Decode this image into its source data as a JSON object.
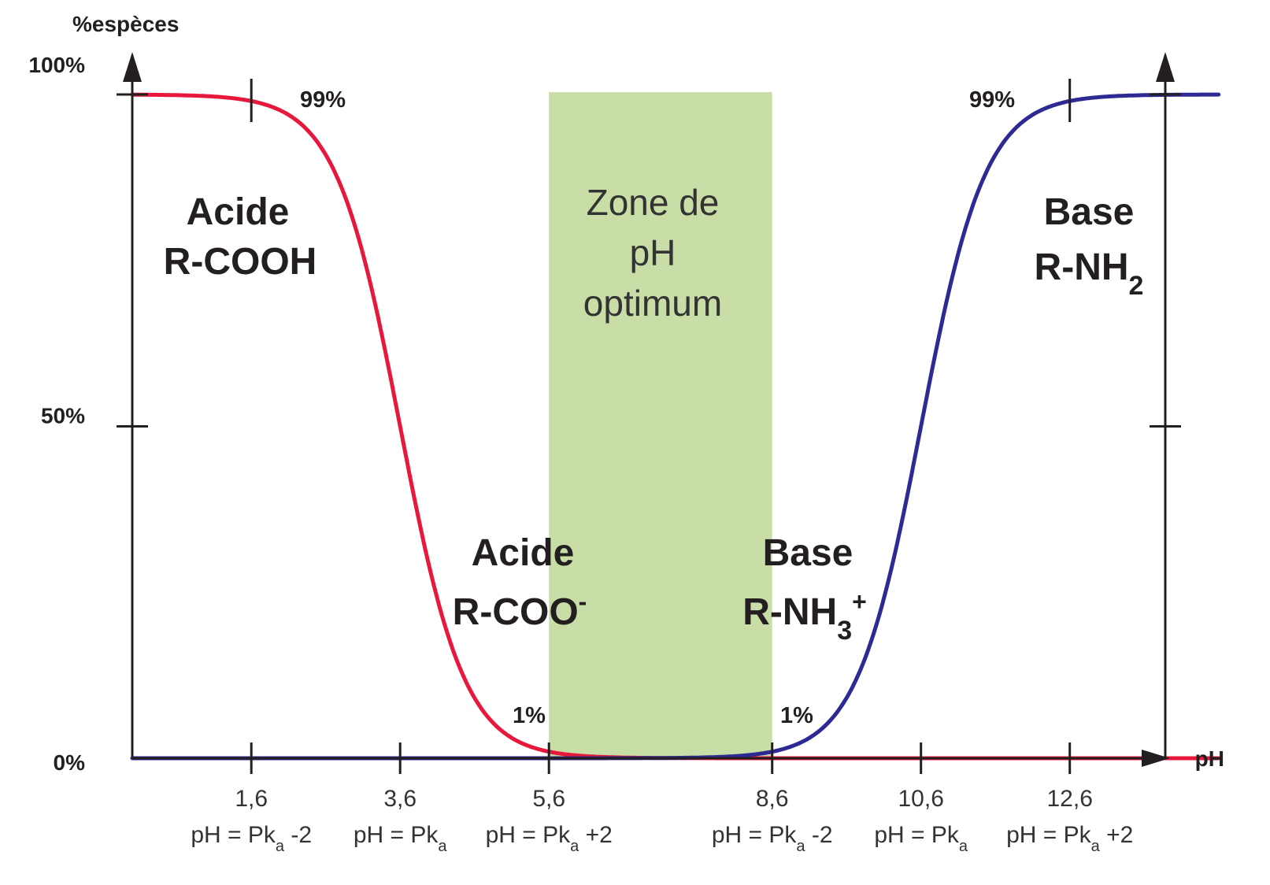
{
  "chart_data": {
    "type": "line",
    "ylabel": "%espèces",
    "xlabel": "pH",
    "ytick_labels": [
      "0%",
      "50%",
      "100%"
    ],
    "y_ticks": [
      0,
      50,
      100
    ],
    "ylim": [
      0,
      100
    ],
    "xlim": [
      0.0,
      14.6
    ],
    "x_ticks": [
      1.6,
      3.6,
      5.6,
      8.6,
      10.6,
      12.6
    ],
    "xtick_labels": [
      "1,6",
      "3,6",
      "5,6",
      "8,6",
      "10,6",
      "12,6"
    ],
    "xtick_subs": [
      {
        "pre": "pH = Pk",
        "sub": "a",
        "post": " -2"
      },
      {
        "pre": "pH = Pk",
        "sub": "a",
        "post": ""
      },
      {
        "pre": "pH = Pk",
        "sub": "a",
        "post": " +2"
      },
      {
        "pre": "pH = Pk",
        "sub": "a",
        "post": " -2"
      },
      {
        "pre": "pH = Pk",
        "sub": "a",
        "post": ""
      },
      {
        "pre": "pH = Pk",
        "sub": "a",
        "post": " +2"
      }
    ],
    "series": [
      {
        "color": "#e8173c",
        "pKa": 3.6,
        "direction": "decreasing"
      },
      {
        "color": "#2e2a93",
        "pKa": 10.6,
        "direction": "increasing"
      }
    ],
    "optimum_zone": {
      "x_range": [
        5.6,
        8.6
      ],
      "color": "#c8dea6",
      "lines": [
        "Zone de",
        "pH",
        "optimum"
      ]
    },
    "species_labels": {
      "acid_left": {
        "line1": "Acide",
        "line2": "R-COOH"
      },
      "acid_mid": {
        "line1": "Acide",
        "line2": "R-COO",
        "sup": "-"
      },
      "base_mid": {
        "line1": "Base",
        "line2": "R-NH",
        "sub": "3",
        "sup": "+"
      },
      "base_right": {
        "line1": "Base",
        "line2": "R-NH",
        "sub": "2"
      }
    },
    "annotations": {
      "acid_99": "99%",
      "base_99": "99%",
      "acid_1": "1%",
      "base_1": "1%"
    }
  }
}
